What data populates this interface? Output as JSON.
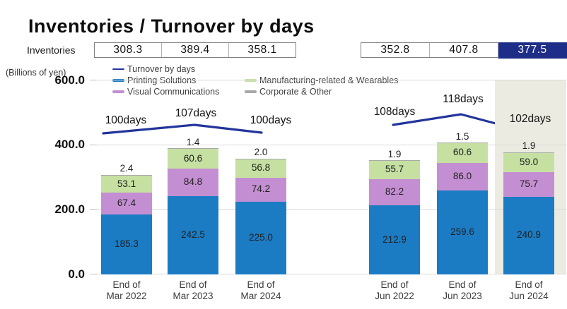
{
  "title": "Inventories / Turnover by days",
  "inventories_row": {
    "label": "Inventories",
    "left_values": [
      "308.3",
      "389.4",
      "358.1"
    ],
    "right_values": [
      "352.8",
      "407.8",
      "377.5"
    ],
    "highlight_index_right": 2,
    "highlight_bg": "#1e2d87",
    "highlight_text_color": "#ffffff"
  },
  "legend": {
    "items": [
      {
        "label": "Turnover by days",
        "color": "#22359b",
        "kind": "line"
      },
      {
        "label": "Printing Solutions",
        "color": "#1b7cc3",
        "kind": "bar"
      },
      {
        "label": "Visual Communications",
        "color": "#c48fd2",
        "kind": "bar"
      },
      {
        "label": "Manufacturing-related & Wearables",
        "color": "#c6e0a2",
        "kind": "bar"
      },
      {
        "label": "Corporate & Other",
        "color": "#a8a8a8",
        "kind": "bar"
      }
    ]
  },
  "chart_data": {
    "type": "bar",
    "stacked": true,
    "title": "Inventories / Turnover by days",
    "ylabel": "(Billions of yen)",
    "ylim": [
      0,
      600
    ],
    "yticks": [
      600,
      400,
      200,
      0
    ],
    "grid": true,
    "legend_position": "top",
    "categories": [
      "End of Mar 2022",
      "End of Mar 2023",
      "End of Mar 2024",
      "End of Jun 2022",
      "End of Jun 2023",
      "End of Jun 2024"
    ],
    "series": [
      {
        "name": "Printing Solutions",
        "color": "#1b7cc3",
        "values": [
          185.3,
          242.5,
          225.0,
          212.9,
          259.6,
          240.9
        ]
      },
      {
        "name": "Visual Communications",
        "color": "#c48fd2",
        "values": [
          67.4,
          84.8,
          74.2,
          82.2,
          86.0,
          75.7
        ]
      },
      {
        "name": "Manufacturing-related & Wearables",
        "color": "#c6e0a2",
        "values": [
          53.1,
          60.6,
          56.8,
          55.7,
          60.6,
          59.0
        ]
      },
      {
        "name": "Corporate & Other",
        "color": "#a8a8a8",
        "values": [
          2.4,
          1.4,
          2.0,
          1.9,
          1.5,
          1.9
        ]
      }
    ],
    "line": {
      "name": "Turnover by days",
      "color": "#22359b",
      "unit": "days",
      "values": [
        100,
        107,
        100,
        108,
        118,
        102
      ],
      "labels": [
        "100days",
        "107days",
        "100days",
        "108days",
        "118days",
        "102days"
      ]
    },
    "totals": [
      308.3,
      389.4,
      358.1,
      352.8,
      407.8,
      377.5
    ],
    "highlight_category": "End of Jun 2024",
    "highlight_bg": "#ecebe1"
  }
}
